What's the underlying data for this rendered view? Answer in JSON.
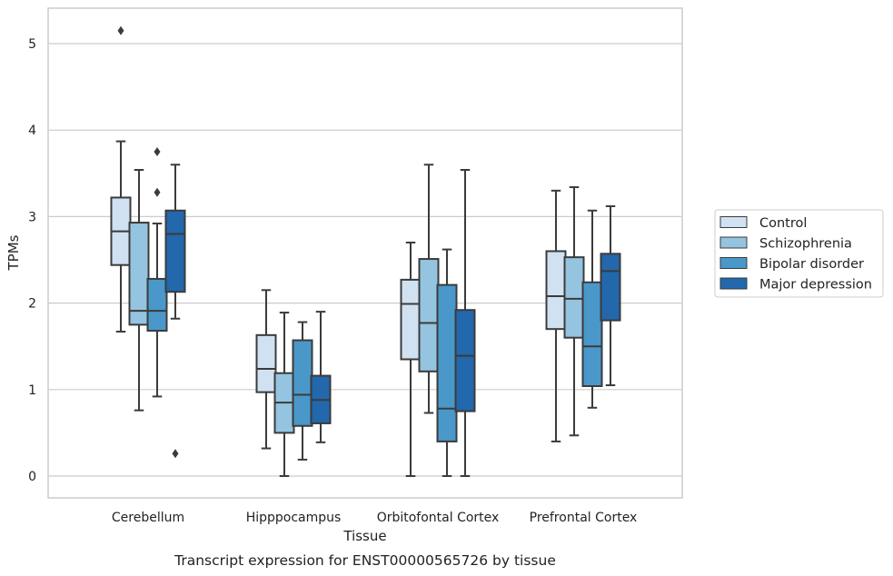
{
  "chart_data": {
    "type": "box",
    "title": "Transcript expression for ENST00000565726 by tissue",
    "xlabel": "Tissue",
    "ylabel": "TPMs",
    "ylim": [
      -0.25,
      5.4
    ],
    "yticks": [
      0,
      1,
      2,
      3,
      4,
      5
    ],
    "grid": "horizontal",
    "legend_position": "right",
    "categories": [
      "Cerebellum",
      "Hipppocampus",
      "Orbitofontal Cortex",
      "Prefrontal Cortex"
    ],
    "series": [
      {
        "name": "Control",
        "color": "#d0e1f2",
        "boxes": [
          {
            "whisker_low": 1.67,
            "q1": 2.44,
            "median": 2.83,
            "q3": 3.22,
            "whisker_high": 3.87,
            "outliers": [
              5.15
            ]
          },
          {
            "whisker_low": 0.32,
            "q1": 0.97,
            "median": 1.24,
            "q3": 1.63,
            "whisker_high": 2.15,
            "outliers": []
          },
          {
            "whisker_low": 0.0,
            "q1": 1.35,
            "median": 1.99,
            "q3": 2.27,
            "whisker_high": 2.7,
            "outliers": []
          },
          {
            "whisker_low": 0.4,
            "q1": 1.7,
            "median": 2.08,
            "q3": 2.6,
            "whisker_high": 3.3,
            "outliers": []
          }
        ]
      },
      {
        "name": "Schizophrenia",
        "color": "#94c4df",
        "boxes": [
          {
            "whisker_low": 0.76,
            "q1": 1.75,
            "median": 1.91,
            "q3": 2.93,
            "whisker_high": 3.54,
            "outliers": []
          },
          {
            "whisker_low": 0.0,
            "q1": 0.5,
            "median": 0.85,
            "q3": 1.19,
            "whisker_high": 1.89,
            "outliers": []
          },
          {
            "whisker_low": 0.73,
            "q1": 1.21,
            "median": 1.77,
            "q3": 2.51,
            "whisker_high": 3.6,
            "outliers": []
          },
          {
            "whisker_low": 0.47,
            "q1": 1.6,
            "median": 2.05,
            "q3": 2.53,
            "whisker_high": 3.34,
            "outliers": []
          }
        ]
      },
      {
        "name": "Bipolar disorder",
        "color": "#4a98c9",
        "boxes": [
          {
            "whisker_low": 0.92,
            "q1": 1.68,
            "median": 1.91,
            "q3": 2.28,
            "whisker_high": 2.92,
            "outliers": [
              3.28,
              3.75
            ]
          },
          {
            "whisker_low": 0.19,
            "q1": 0.58,
            "median": 0.94,
            "q3": 1.57,
            "whisker_high": 1.78,
            "outliers": []
          },
          {
            "whisker_low": 0.0,
            "q1": 0.4,
            "median": 0.78,
            "q3": 2.21,
            "whisker_high": 2.62,
            "outliers": []
          },
          {
            "whisker_low": 0.79,
            "q1": 1.04,
            "median": 1.5,
            "q3": 2.24,
            "whisker_high": 3.07,
            "outliers": []
          }
        ]
      },
      {
        "name": "Major depression",
        "color": "#2367ac",
        "boxes": [
          {
            "whisker_low": 1.82,
            "q1": 2.13,
            "median": 2.8,
            "q3": 3.07,
            "whisker_high": 3.6,
            "outliers": [
              0.26
            ]
          },
          {
            "whisker_low": 0.39,
            "q1": 0.61,
            "median": 0.88,
            "q3": 1.16,
            "whisker_high": 1.9,
            "outliers": []
          },
          {
            "whisker_low": 0.0,
            "q1": 0.75,
            "median": 1.39,
            "q3": 1.92,
            "whisker_high": 3.54,
            "outliers": []
          },
          {
            "whisker_low": 1.05,
            "q1": 1.8,
            "median": 2.37,
            "q3": 2.57,
            "whisker_high": 3.12,
            "outliers": []
          }
        ]
      }
    ]
  }
}
